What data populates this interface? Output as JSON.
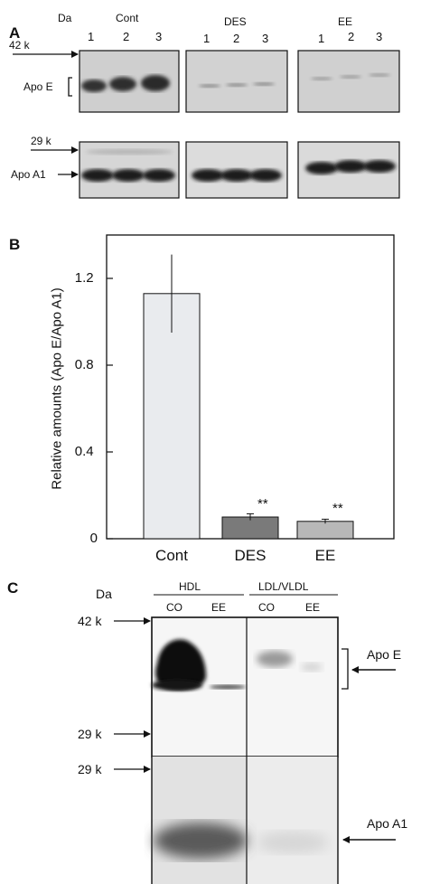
{
  "panel_a": {
    "letter": "A",
    "da_label": "Da",
    "groups": [
      "Cont",
      "DES",
      "EE"
    ],
    "lanes": [
      "1",
      "2",
      "3"
    ],
    "marker_top": "42 k",
    "marker_bottom": "29 k",
    "band_labels": [
      "Apo E",
      "Apo A1"
    ]
  },
  "panel_b": {
    "letter": "B",
    "chart_data": {
      "type": "bar",
      "categories": [
        "Cont",
        "DES",
        "EE"
      ],
      "values": [
        1.13,
        0.1,
        0.08
      ],
      "errors": [
        0.18,
        0.015,
        0.01
      ],
      "annotations": [
        "",
        "**",
        "**"
      ],
      "title": "",
      "xlabel": "",
      "ylabel": "Relative amounts (Apo E/Apo A1)",
      "ylim": [
        0,
        1.4
      ],
      "yticks": [
        "0",
        "0.4",
        "0.8",
        "1.2"
      ],
      "grid": false,
      "colors": [
        "#e9ebee",
        "#7a7a7a",
        "#b8b8b8"
      ]
    }
  },
  "panel_c": {
    "letter": "C",
    "da_label": "Da",
    "groups": [
      "HDL",
      "LDL/VLDL"
    ],
    "lanes": [
      "CO",
      "EE",
      "CO",
      "EE"
    ],
    "markers": [
      "42 k",
      "29 k",
      "29 k"
    ],
    "band_labels": [
      "Apo E",
      "Apo A1"
    ]
  }
}
